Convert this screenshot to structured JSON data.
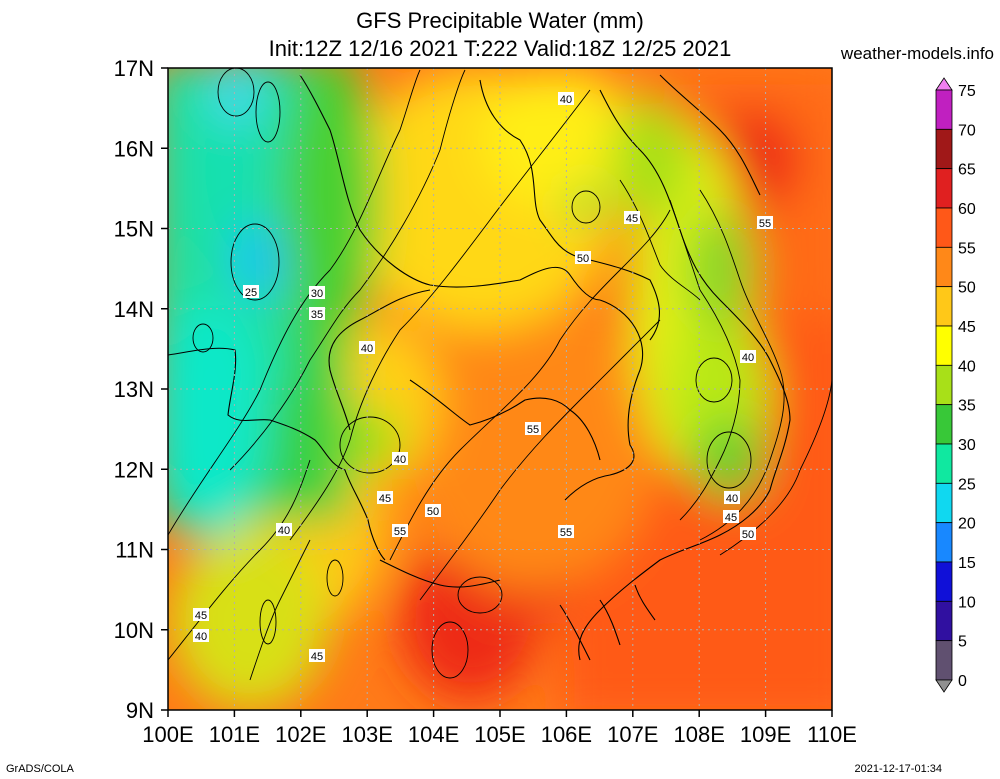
{
  "title_line1": "GFS Precipitable Water (mm)",
  "title_line2": "Init:12Z 12/16 2021 T:222 Valid:18Z 12/25 2021",
  "site": "weather-models.info",
  "footer_left": "GrADS/COLA",
  "footer_right": "2021-12-17-01:34",
  "lat_labels": [
    "17N",
    "16N",
    "15N",
    "14N",
    "13N",
    "12N",
    "11N",
    "10N",
    "9N"
  ],
  "lon_labels": [
    "100E",
    "101E",
    "102E",
    "103E",
    "104E",
    "105E",
    "106E",
    "107E",
    "108E",
    "109E",
    "110E"
  ],
  "colorbar": {
    "labels": [
      "75",
      "70",
      "65",
      "60",
      "55",
      "50",
      "45",
      "40",
      "35",
      "30",
      "25",
      "20",
      "15",
      "10",
      "5",
      "0"
    ],
    "colors": [
      "#f080f0",
      "#c020c0",
      "#a01818",
      "#e02020",
      "#ff5818",
      "#ff8818",
      "#ffc818",
      "#ffff00",
      "#a8e018",
      "#38c838",
      "#10e8a0",
      "#10d8f0",
      "#1888ff",
      "#1010d8",
      "#3010a0",
      "#605070",
      "#909090"
    ]
  },
  "contour_labels": [
    {
      "text": "40",
      "id": "c40a"
    },
    {
      "text": "45",
      "id": "c45a"
    },
    {
      "text": "55",
      "id": "c55a"
    },
    {
      "text": "50",
      "id": "c50a"
    },
    {
      "text": "25",
      "id": "c25a"
    },
    {
      "text": "30",
      "id": "c30a"
    },
    {
      "text": "35",
      "id": "c35a"
    },
    {
      "text": "40",
      "id": "c40b"
    },
    {
      "text": "40",
      "id": "c40c"
    },
    {
      "text": "55",
      "id": "c55b"
    },
    {
      "text": "40",
      "id": "c40d"
    },
    {
      "text": "45",
      "id": "c45b"
    },
    {
      "text": "50",
      "id": "c50b"
    },
    {
      "text": "55",
      "id": "c55c"
    },
    {
      "text": "40",
      "id": "c40e"
    },
    {
      "text": "55",
      "id": "c55d"
    },
    {
      "text": "40",
      "id": "c40f"
    },
    {
      "text": "45",
      "id": "c45c"
    },
    {
      "text": "50",
      "id": "c50c"
    },
    {
      "text": "45",
      "id": "c45d"
    },
    {
      "text": "40",
      "id": "c40g"
    },
    {
      "text": "45",
      "id": "c45e"
    }
  ]
}
